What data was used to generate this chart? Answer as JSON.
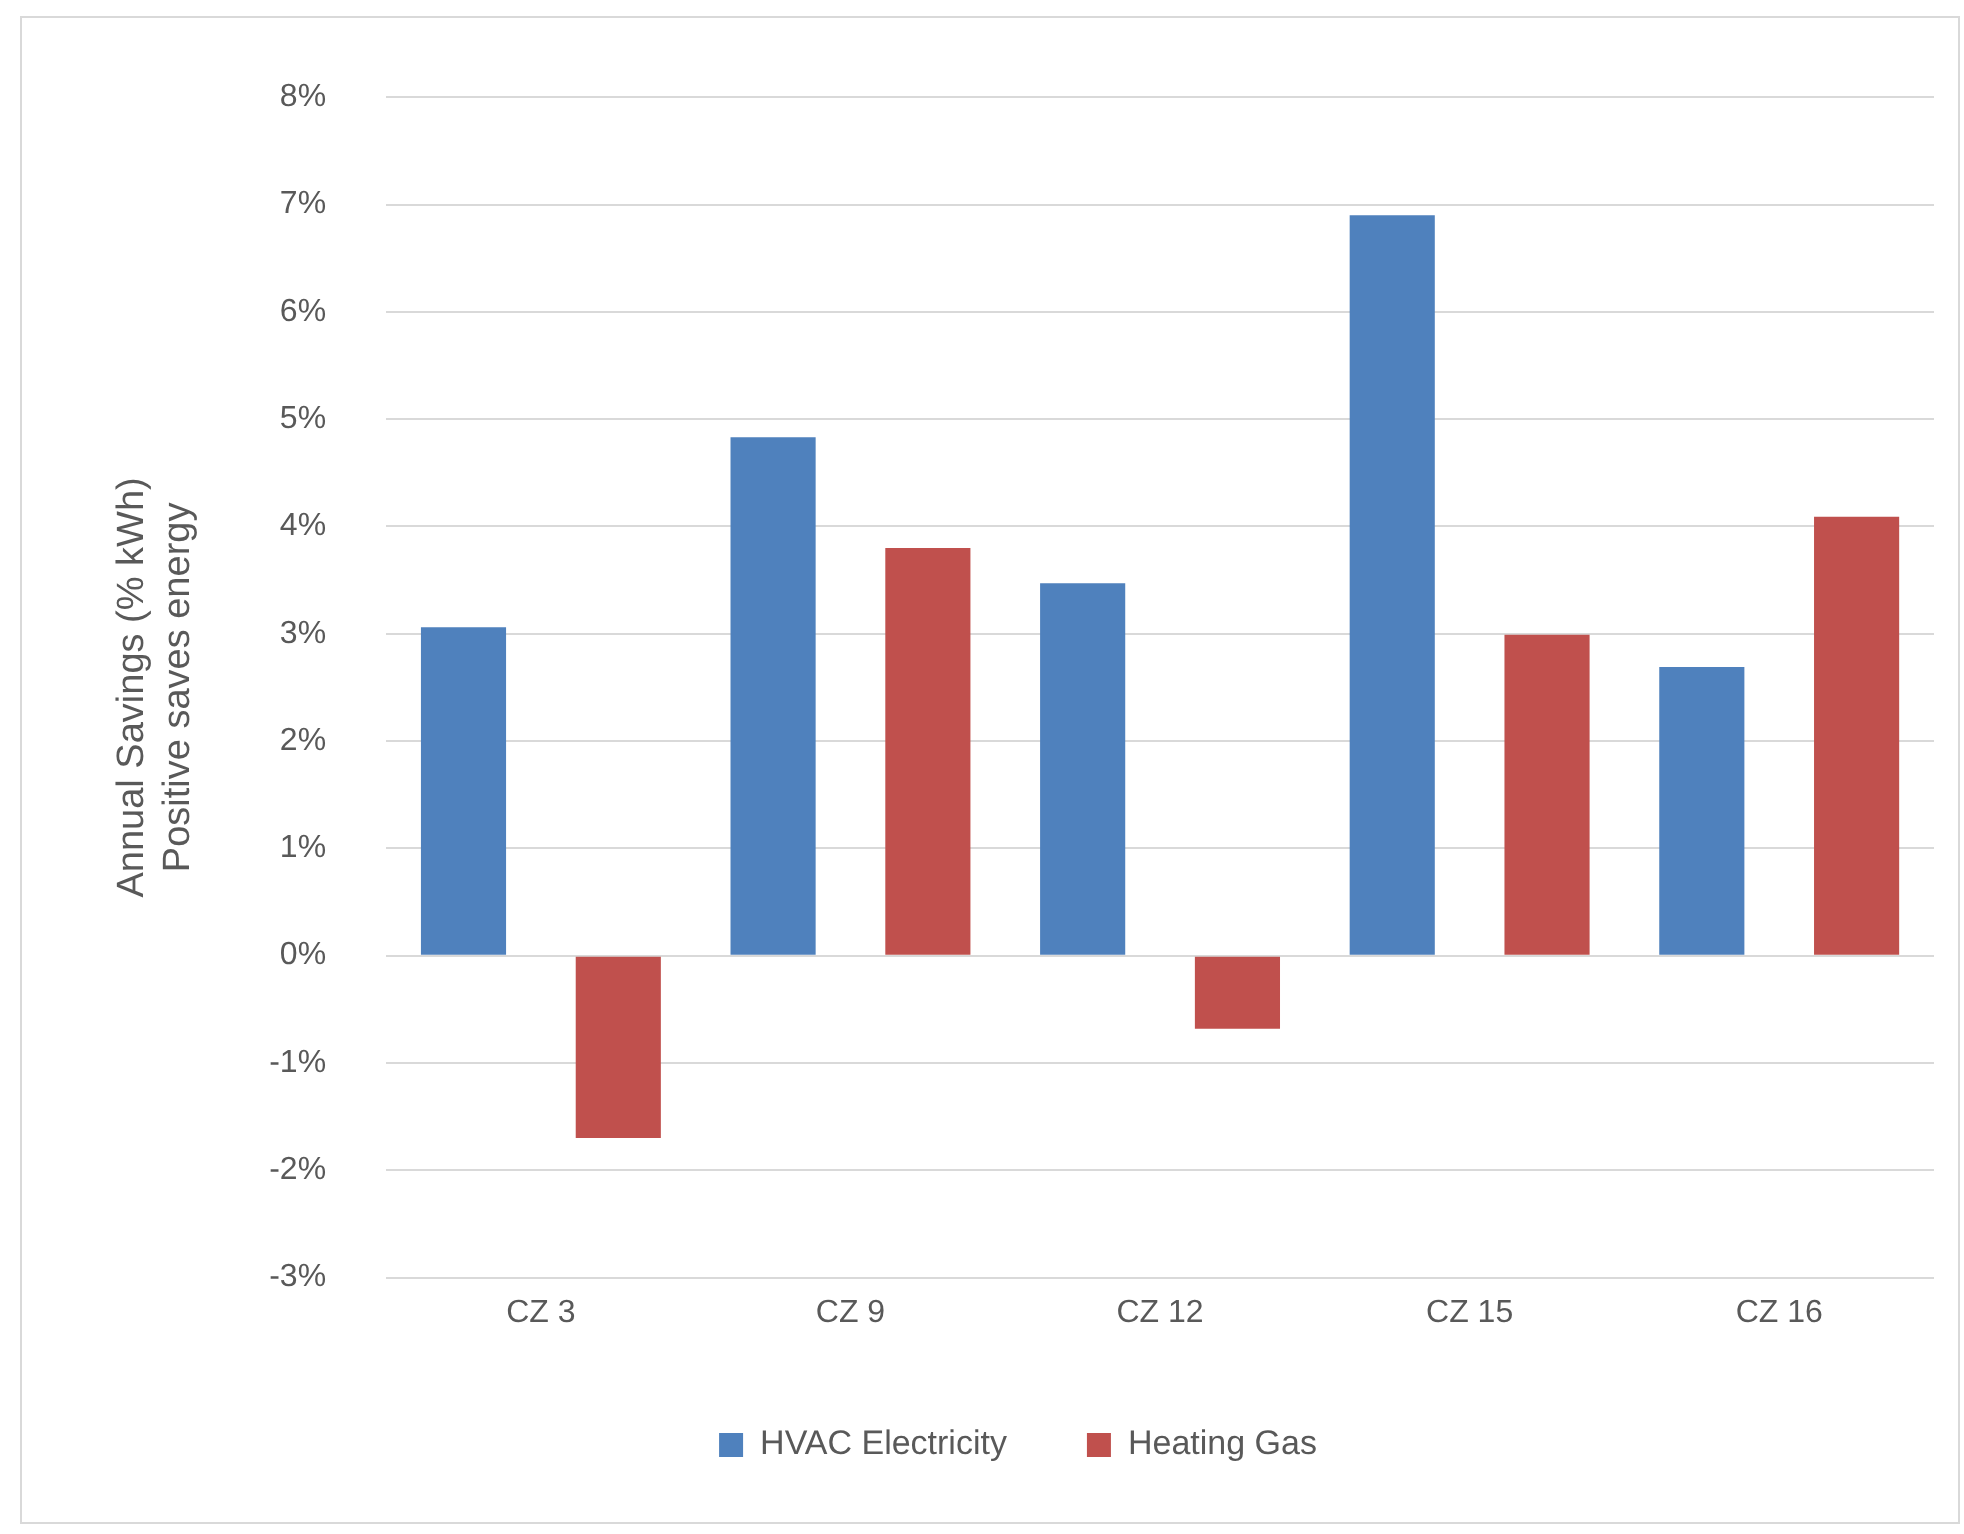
{
  "chart_data": {
    "type": "bar",
    "ylabel": "Annual Savings (% kWh)\nPositive saves energy",
    "categories": [
      "CZ 3",
      "CZ 9",
      "CZ 12",
      "CZ 15",
      "CZ 16"
    ],
    "series": [
      {
        "name": "HVAC Electricity",
        "color": "#4f81bd",
        "values": [
          3.06,
          4.83,
          3.47,
          6.9,
          2.69
        ]
      },
      {
        "name": "Heating Gas",
        "color": "#c0504d",
        "values": [
          -1.7,
          3.8,
          -0.68,
          2.99,
          4.09
        ]
      }
    ],
    "ylim": [
      -3,
      8
    ],
    "yticks": [
      {
        "value": -3,
        "label": "-3%"
      },
      {
        "value": -2,
        "label": "-2%"
      },
      {
        "value": -1,
        "label": "-1%"
      },
      {
        "value": 0,
        "label": "0%"
      },
      {
        "value": 1,
        "label": "1%"
      },
      {
        "value": 2,
        "label": "2%"
      },
      {
        "value": 3,
        "label": "3%"
      },
      {
        "value": 4,
        "label": "4%"
      },
      {
        "value": 5,
        "label": "5%"
      },
      {
        "value": 6,
        "label": "6%"
      },
      {
        "value": 7,
        "label": "7%"
      },
      {
        "value": 8,
        "label": "8%"
      }
    ],
    "grid": "y",
    "legend": "bottom"
  }
}
